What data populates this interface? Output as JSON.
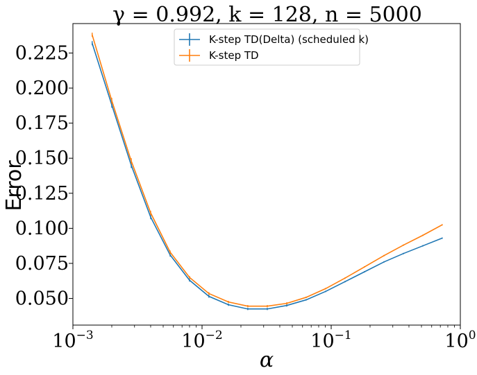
{
  "chart_data": {
    "type": "line",
    "title": "γ = 0.992, k = 128, n = 5000",
    "xlabel": "α",
    "ylabel": "Error",
    "xscale": "log",
    "xlim": [
      0.001,
      1
    ],
    "ylim": [
      0.031,
      0.246
    ],
    "grid": false,
    "legend_position": "top-center",
    "x_ticks": [
      {
        "value": 0.001,
        "base": "10",
        "exp": "−3"
      },
      {
        "value": 0.01,
        "base": "10",
        "exp": "−2"
      },
      {
        "value": 0.1,
        "base": "10",
        "exp": "−1"
      },
      {
        "value": 1,
        "base": "10",
        "exp": "0"
      }
    ],
    "y_ticks": [
      {
        "value": 0.05,
        "label": "0.050"
      },
      {
        "value": 0.075,
        "label": "0.075"
      },
      {
        "value": 0.1,
        "label": "0.100"
      },
      {
        "value": 0.125,
        "label": "0.125"
      },
      {
        "value": 0.15,
        "label": "0.150"
      },
      {
        "value": 0.175,
        "label": "0.175"
      },
      {
        "value": 0.2,
        "label": "0.200"
      },
      {
        "value": 0.225,
        "label": "0.225"
      }
    ],
    "series": [
      {
        "name": "K-step TD(Delta) (scheduled k)",
        "color": "#1f77b4",
        "x": [
          0.00141,
          0.002,
          0.00283,
          0.004,
          0.00566,
          0.008,
          0.0113,
          0.016,
          0.0226,
          0.032,
          0.0453,
          0.064,
          0.0905,
          0.128,
          0.181,
          0.256,
          0.362,
          0.512,
          0.724
        ],
        "y": [
          0.232,
          0.188,
          0.145,
          0.108,
          0.081,
          0.063,
          0.0515,
          0.0455,
          0.0425,
          0.0425,
          0.045,
          0.049,
          0.055,
          0.062,
          0.069,
          0.076,
          0.082,
          0.0875,
          0.093
        ],
        "err": [
          0.0015,
          0.002,
          0.002,
          0.0015,
          0.0012,
          0.001,
          0.001,
          0.0008,
          0.0008,
          0.0008,
          0.0008,
          0.0005,
          0.0005,
          0.0005,
          0.0005,
          0.0005,
          0.0005,
          0.0005,
          0.0005
        ]
      },
      {
        "name": "K-step TD",
        "color": "#ff7f0e",
        "x": [
          0.00141,
          0.002,
          0.00283,
          0.004,
          0.00566,
          0.008,
          0.0113,
          0.016,
          0.0226,
          0.032,
          0.0453,
          0.064,
          0.0905,
          0.128,
          0.181,
          0.256,
          0.362,
          0.512,
          0.724
        ],
        "y": [
          0.238,
          0.191,
          0.148,
          0.111,
          0.083,
          0.065,
          0.0535,
          0.0475,
          0.0445,
          0.0445,
          0.0465,
          0.0508,
          0.057,
          0.0645,
          0.0725,
          0.0805,
          0.088,
          0.095,
          0.1025
        ],
        "err": [
          0.0015,
          0.002,
          0.002,
          0.0015,
          0.0012,
          0.001,
          0.001,
          0.0008,
          0.0008,
          0.0008,
          0.0008,
          0.0005,
          0.0005,
          0.0005,
          0.0005,
          0.0005,
          0.0005,
          0.0005,
          0.0005
        ]
      }
    ]
  }
}
